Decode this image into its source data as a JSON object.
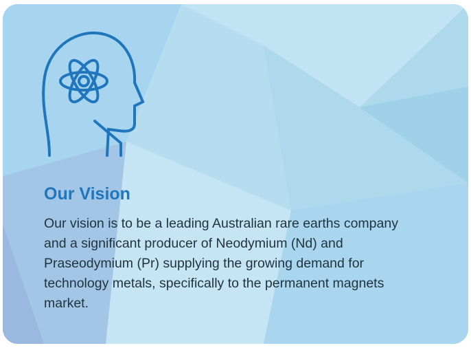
{
  "card": {
    "title": "Our Vision",
    "body": "Our vision is to be a leading Australian rare earths company and a significant producer of Neodymium (Nd) and Praseodymium (Pr) supplying the growing demand for technology metals, specifically to the permanent magnets market."
  }
}
